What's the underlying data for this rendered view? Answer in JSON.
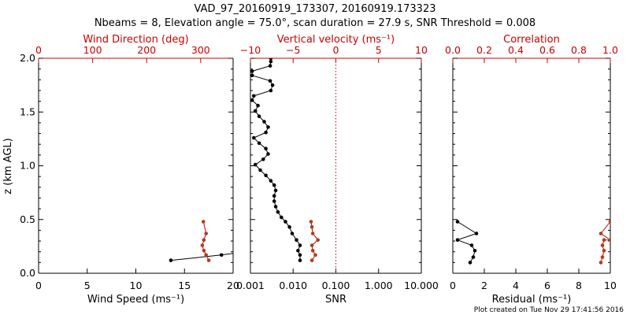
{
  "colors": {
    "black": "#000000",
    "red": "#cc0000",
    "marker_red": "#b33a1a"
  },
  "title_line1": "VAD_97_20160919_173307, 20160919.173323",
  "title_line2": "Nbeams = 8, Elevation angle = 75.0°, scan duration = 27.9 s, SNR Threshold = 0.008",
  "ylabel": "z (km AGL)",
  "footer": "Plot created on Tue Nov 29 17:41:56 2016",
  "chart_data": [
    {
      "type": "line",
      "panel": "left",
      "ylim": [
        0.0,
        2.0
      ],
      "yticks": [
        "0.0",
        "0.5",
        "1.0",
        "1.5",
        "2.0"
      ],
      "bottom_axis": {
        "label": "Wind Speed (ms⁻¹)",
        "range": [
          0,
          20
        ],
        "ticks": [
          "0",
          "5",
          "10",
          "15",
          "20"
        ],
        "scale": "linear"
      },
      "top_axis": {
        "label": "Wind Direction (deg)",
        "range": [
          0,
          360
        ],
        "ticks": [
          "0",
          "100",
          "200",
          "300"
        ],
        "scale": "linear"
      },
      "series": [
        {
          "axis": "bottom",
          "color": "black",
          "x": [
            13.6,
            18.8,
            22.0
          ],
          "y": [
            0.12,
            0.17,
            0.21
          ]
        },
        {
          "axis": "top",
          "color": "red",
          "x": [
            315,
            310,
            306,
            303,
            306,
            310,
            305
          ],
          "y": [
            0.12,
            0.17,
            0.21,
            0.26,
            0.31,
            0.37,
            0.48
          ]
        }
      ]
    },
    {
      "type": "line",
      "panel": "middle",
      "ylim": [
        0.0,
        2.0
      ],
      "bottom_axis": {
        "label": "SNR",
        "range": [
          0.001,
          10
        ],
        "ticks": [
          "0.001",
          "0.010",
          "0.100",
          "1.000",
          "10.000"
        ],
        "scale": "log"
      },
      "top_axis": {
        "label": "Vertical velocity (ms⁻¹)",
        "range": [
          -10,
          10
        ],
        "ticks": [
          "−10",
          "−5",
          "0",
          "5",
          "10"
        ],
        "scale": "linear"
      },
      "reference_line": {
        "axis": "top",
        "x": 0,
        "style": "dotted",
        "color": "red"
      },
      "series": [
        {
          "axis": "bottom",
          "color": "black",
          "x": [
            0.0145,
            0.0145,
            0.013,
            0.0145,
            0.012,
            0.0095,
            0.0082,
            0.0066,
            0.0053,
            0.0044,
            0.0039,
            0.0036,
            0.0036,
            0.0039,
            0.0036,
            0.003,
            0.0023,
            0.0017,
            0.0013,
            0.002,
            0.0026,
            0.0023,
            0.0016,
            0.0012,
            0.0023,
            0.0026,
            0.0021,
            0.0016,
            0.0013,
            0.0015,
            0.0011,
            0.0012,
            0.003,
            0.0033,
            0.0029,
            0.0011,
            0.0011,
            0.0029,
            0.003,
            0.003,
            0.003
          ],
          "y": [
            0.12,
            0.17,
            0.21,
            0.26,
            0.31,
            0.37,
            0.43,
            0.48,
            0.52,
            0.57,
            0.62,
            0.67,
            0.72,
            0.77,
            0.82,
            0.86,
            0.91,
            0.96,
            1.01,
            1.06,
            1.11,
            1.16,
            1.21,
            1.26,
            1.31,
            1.36,
            1.41,
            1.46,
            1.51,
            1.56,
            1.61,
            1.65,
            1.7,
            1.75,
            1.79,
            1.84,
            1.88,
            1.93,
            1.97,
            2.0,
            2.05
          ]
        },
        {
          "axis": "top",
          "color": "red",
          "x": [
            -2.8,
            -2.4,
            -2.7,
            -2.8,
            -2.1,
            -2.7,
            -2.8,
            -2.9
          ],
          "y": [
            0.12,
            0.17,
            0.21,
            0.26,
            0.31,
            0.37,
            0.43,
            0.48
          ]
        }
      ]
    },
    {
      "type": "line",
      "panel": "right",
      "ylim": [
        0.0,
        2.0
      ],
      "bottom_axis": {
        "label": "Residual (ms⁻¹)",
        "range": [
          0,
          10
        ],
        "ticks": [
          "0",
          "2",
          "4",
          "6",
          "8",
          "10"
        ],
        "scale": "linear"
      },
      "top_axis": {
        "label": "Correlation",
        "range": [
          0.0,
          1.0
        ],
        "ticks": [
          "0.0",
          "0.2",
          "0.4",
          "0.6",
          "0.8",
          "1.0"
        ],
        "scale": "linear"
      },
      "series": [
        {
          "axis": "bottom",
          "color": "black",
          "x": [
            1.1,
            1.3,
            1.4,
            1.2,
            0.3,
            1.5,
            0.3
          ],
          "y": [
            0.1,
            0.15,
            0.21,
            0.26,
            0.31,
            0.37,
            0.48
          ]
        },
        {
          "axis": "top",
          "color": "red",
          "x": [
            0.94,
            0.95,
            0.96,
            0.95,
            0.96,
            1.0,
            0.94,
            1.0
          ],
          "y": [
            0.1,
            0.15,
            0.21,
            0.26,
            0.31,
            0.31,
            0.37,
            0.48
          ]
        }
      ]
    }
  ]
}
